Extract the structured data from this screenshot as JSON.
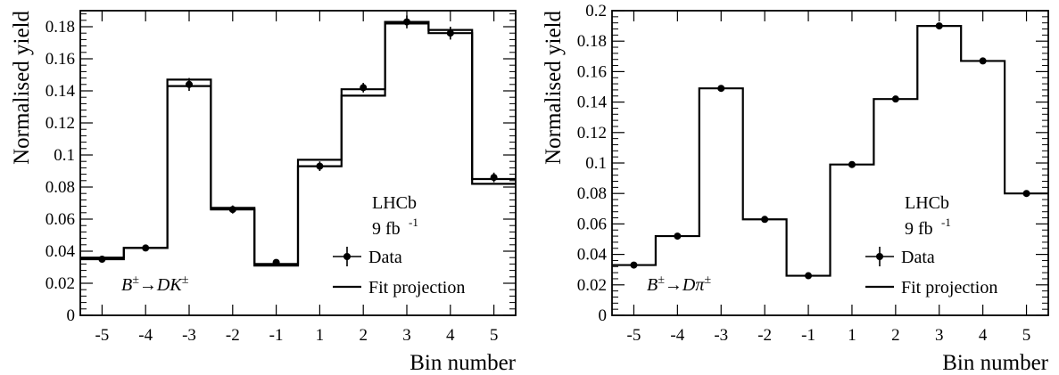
{
  "chart_data": [
    {
      "type": "step",
      "ylabel": "Normalised yield",
      "xlabel": "Bin number",
      "ylim": [
        0,
        0.19
      ],
      "yticks": [
        "0",
        "0.02",
        "0.04",
        "0.06",
        "0.08",
        "0.1",
        "0.12",
        "0.14",
        "0.16",
        "0.18"
      ],
      "categories": [
        "-5",
        "-4",
        "-3",
        "-2",
        "-1",
        "1",
        "2",
        "3",
        "4",
        "5"
      ],
      "experiment": "LHCb",
      "luminosity": "9 fb",
      "luminosity_exp": "-1",
      "decay": {
        "b": "B",
        "pm1": "±",
        "arrow": "→",
        "d": "DK",
        "pm2": "±"
      },
      "series": [
        {
          "name": "Data",
          "values": [
            0.035,
            0.042,
            0.144,
            0.066,
            0.033,
            0.093,
            0.142,
            0.183,
            0.176,
            0.086
          ],
          "errors": [
            0.0015,
            0.0015,
            0.004,
            0.0025,
            0.0015,
            0.003,
            0.003,
            0.004,
            0.004,
            0.003
          ]
        },
        {
          "name": "Fit projection",
          "values": [
            0.036,
            0.042,
            0.147,
            0.067,
            0.032,
            0.097,
            0.137,
            0.183,
            0.178,
            0.085
          ]
        },
        {
          "name": "",
          "values": [
            0.035,
            0.042,
            0.143,
            0.066,
            0.031,
            0.093,
            0.141,
            0.182,
            0.176,
            0.082
          ]
        }
      ],
      "legend": [
        "Data",
        "Fit projection"
      ]
    },
    {
      "type": "step",
      "ylabel": "Normalised yield",
      "xlabel": "Bin number",
      "ylim": [
        0,
        0.2
      ],
      "yticks": [
        "0",
        "0.02",
        "0.04",
        "0.06",
        "0.08",
        "0.1",
        "0.12",
        "0.14",
        "0.16",
        "0.18",
        "0.2"
      ],
      "categories": [
        "-5",
        "-4",
        "-3",
        "-2",
        "-1",
        "1",
        "2",
        "3",
        "4",
        "5"
      ],
      "experiment": "LHCb",
      "luminosity": "9 fb",
      "luminosity_exp": "-1",
      "decay": {
        "b": "B",
        "pm1": "±",
        "arrow": "→",
        "d": "Dπ",
        "pm2": "±"
      },
      "series": [
        {
          "name": "Data",
          "values": [
            0.033,
            0.052,
            0.149,
            0.063,
            0.026,
            0.099,
            0.142,
            0.19,
            0.167,
            0.08
          ],
          "errors": [
            0.001,
            0.001,
            0.0015,
            0.001,
            0.001,
            0.001,
            0.0015,
            0.0015,
            0.0015,
            0.001
          ]
        },
        {
          "name": "Fit projection",
          "values": [
            0.033,
            0.052,
            0.149,
            0.063,
            0.026,
            0.099,
            0.142,
            0.19,
            0.167,
            0.08
          ]
        }
      ],
      "legend": [
        "Data",
        "Fit projection"
      ]
    }
  ]
}
